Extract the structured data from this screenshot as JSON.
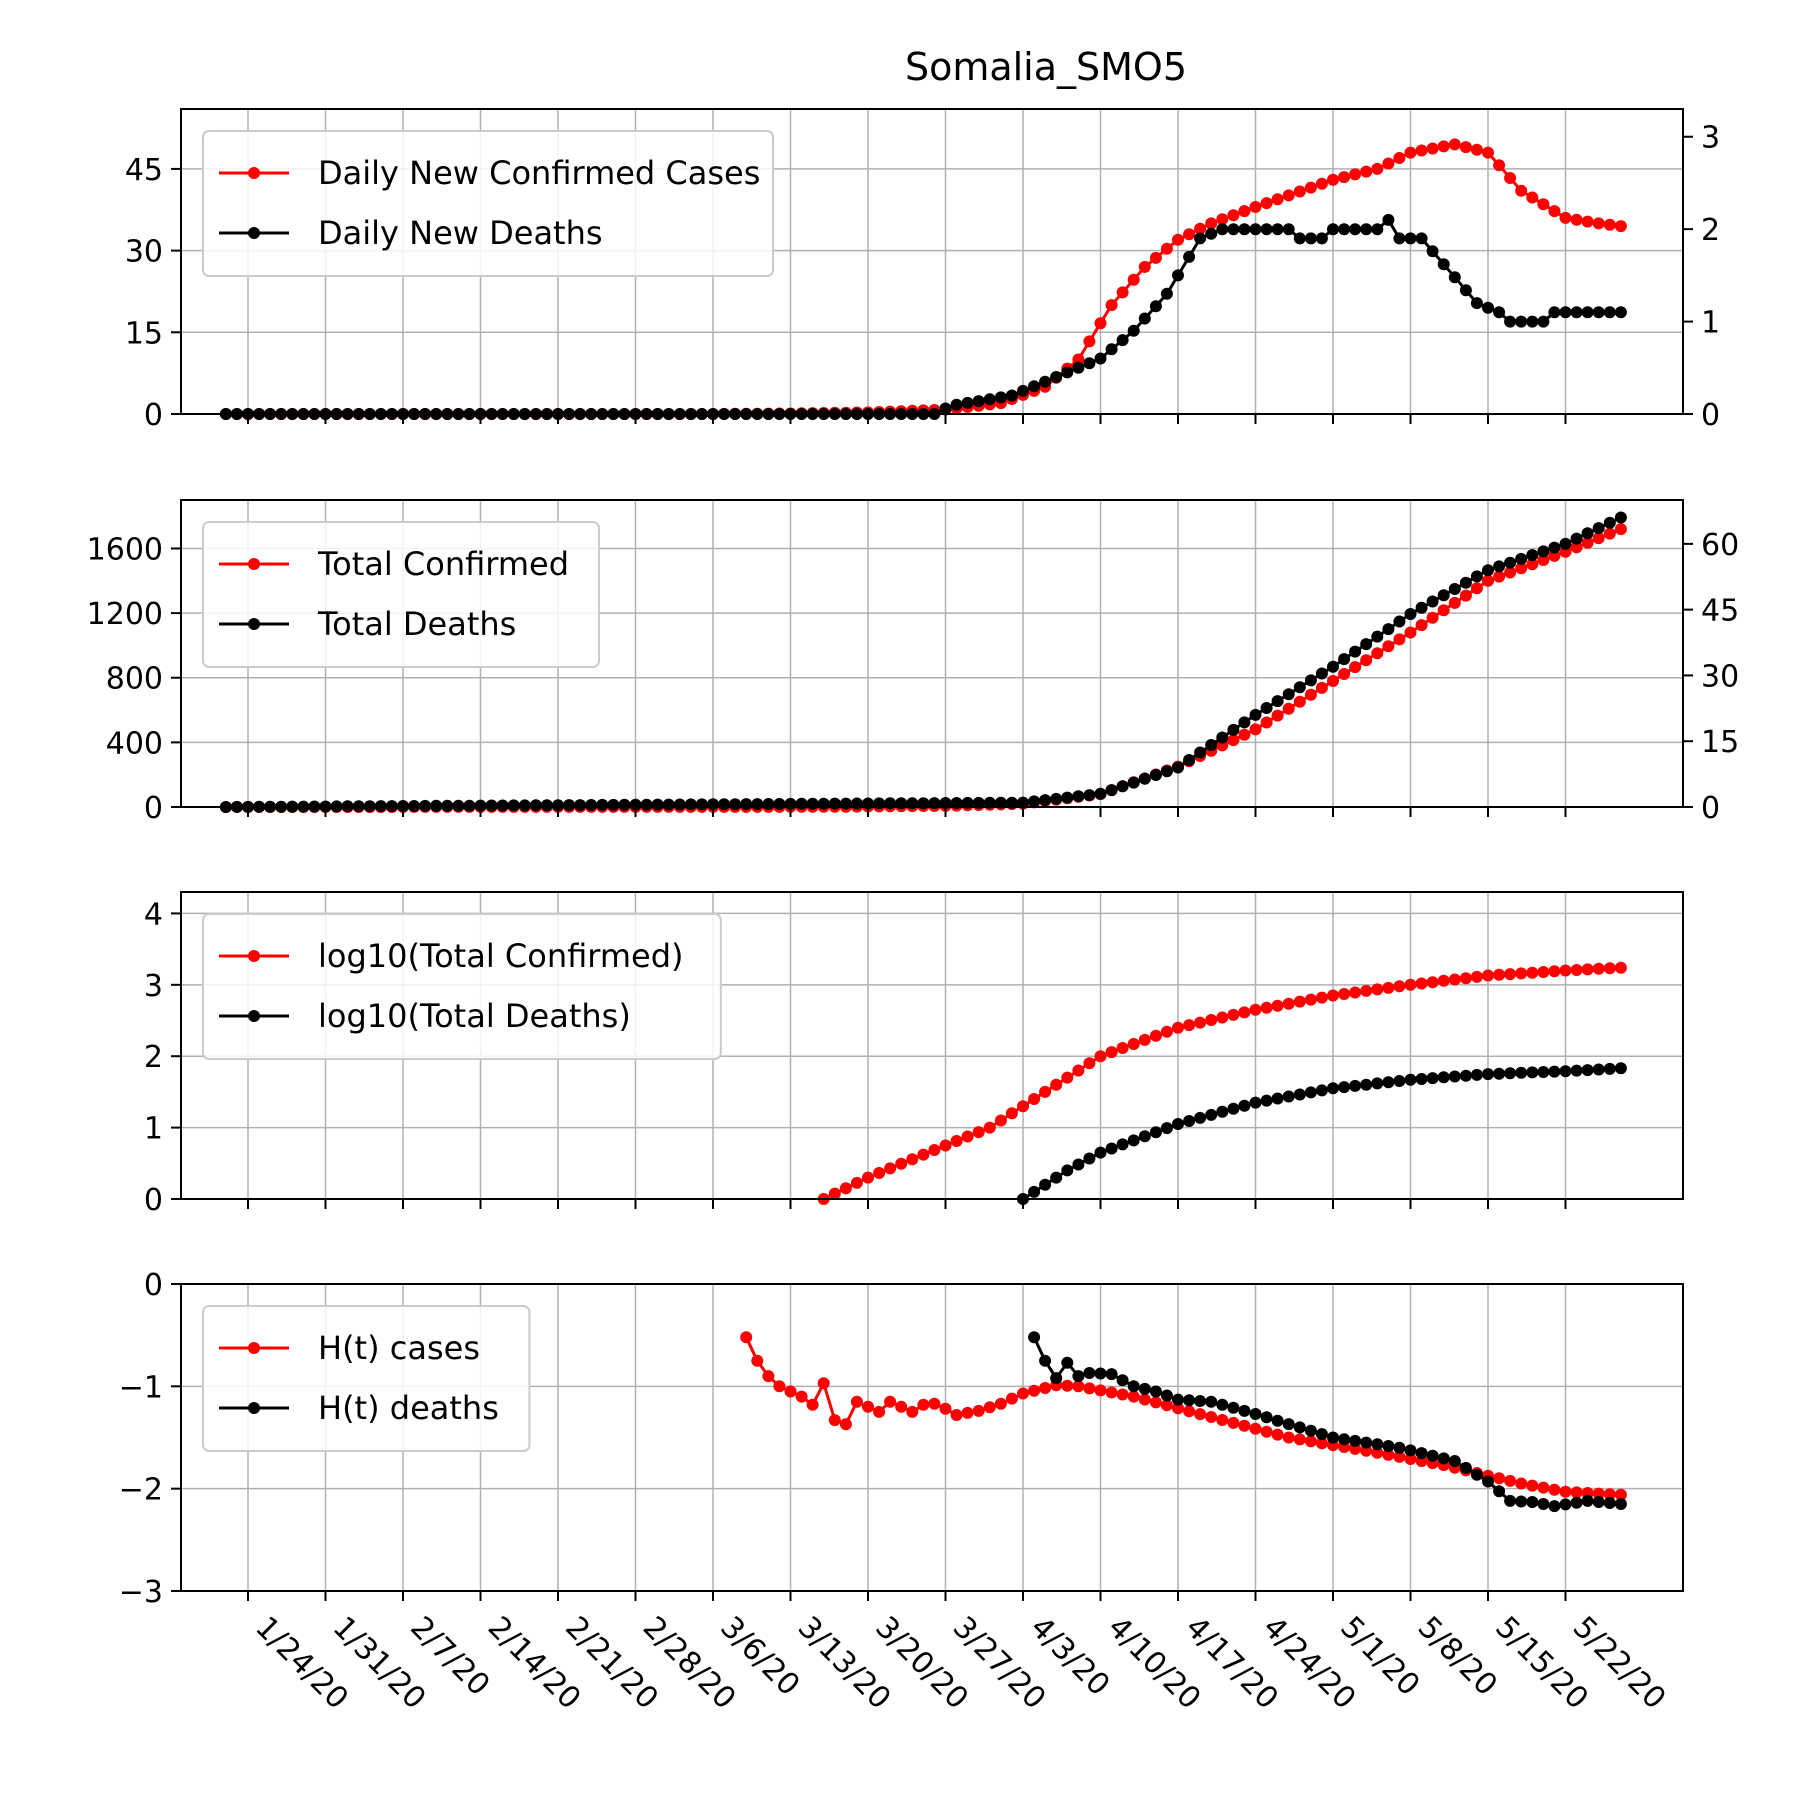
{
  "figure": {
    "title": "Somalia_SMO5"
  },
  "x_axis": {
    "start_date": "1/22/20",
    "end_date": "5/27/20",
    "tick_labels": [
      "1/24/20",
      "1/31/20",
      "2/7/20",
      "2/14/20",
      "2/21/20",
      "2/28/20",
      "3/6/20",
      "3/13/20",
      "3/20/20",
      "3/27/20",
      "4/3/20",
      "4/10/20",
      "4/17/20",
      "4/24/20",
      "5/1/20",
      "5/8/20",
      "5/15/20",
      "5/22/20"
    ],
    "label_rotation_deg": -45
  },
  "colors": {
    "cases": "#ff0000",
    "deaths": "#000000",
    "grid": "#b0b0b0"
  },
  "chart_data": [
    {
      "type": "line",
      "panel": "daily",
      "legend": {
        "position": "upper-left",
        "entries": [
          "Daily New Confirmed Cases",
          "Daily New Deaths"
        ]
      },
      "grid": true,
      "y_left": {
        "ylim": [
          0,
          56
        ],
        "ticks": [
          0,
          15,
          30,
          45
        ]
      },
      "y_right": {
        "ylim": [
          0,
          3.3
        ],
        "ticks": [
          0,
          1,
          2,
          3
        ]
      },
      "series": [
        {
          "name": "Daily New Confirmed Cases",
          "axis": "left",
          "color": "#ff0000",
          "keypoints": [
            [
              "1/22/20",
              0
            ],
            [
              "3/6/20",
              0
            ],
            [
              "3/13/20",
              0.1
            ],
            [
              "3/20/20",
              0.3
            ],
            [
              "3/27/20",
              0.8
            ],
            [
              "4/1/20",
              2
            ],
            [
              "4/5/20",
              5
            ],
            [
              "4/8/20",
              10
            ],
            [
              "4/11/20",
              20
            ],
            [
              "4/14/20",
              27
            ],
            [
              "4/17/20",
              32
            ],
            [
              "4/20/20",
              35
            ],
            [
              "4/24/20",
              38
            ],
            [
              "5/1/20",
              43
            ],
            [
              "5/5/20",
              45
            ],
            [
              "5/8/20",
              48
            ],
            [
              "5/12/20",
              49.5
            ],
            [
              "5/15/20",
              48
            ],
            [
              "5/18/20",
              41
            ],
            [
              "5/22/20",
              36
            ],
            [
              "5/25/20",
              35
            ],
            [
              "5/27/20",
              34.5
            ]
          ]
        },
        {
          "name": "Daily New Deaths",
          "axis": "right",
          "color": "#000000",
          "keypoints": [
            [
              "1/22/20",
              0
            ],
            [
              "3/26/20",
              0
            ],
            [
              "3/27/20",
              0.06
            ],
            [
              "3/28/20",
              0.1
            ],
            [
              "4/2/20",
              0.2
            ],
            [
              "4/6/20",
              0.4
            ],
            [
              "4/10/20",
              0.6
            ],
            [
              "4/13/20",
              0.9
            ],
            [
              "4/16/20",
              1.3
            ],
            [
              "4/19/20",
              1.9
            ],
            [
              "4/21/20",
              2
            ],
            [
              "4/27/20",
              2
            ],
            [
              "4/28/20",
              1.9
            ],
            [
              "4/30/20",
              1.9
            ],
            [
              "5/1/20",
              2
            ],
            [
              "5/5/20",
              2
            ],
            [
              "5/6/20",
              2.1
            ],
            [
              "5/7/20",
              1.9
            ],
            [
              "5/9/20",
              1.9
            ],
            [
              "5/14/20",
              1.2
            ],
            [
              "5/16/20",
              1.1
            ],
            [
              "5/17/20",
              1
            ],
            [
              "5/20/20",
              1
            ],
            [
              "5/21/20",
              1.1
            ],
            [
              "5/27/20",
              1.1
            ]
          ]
        }
      ]
    },
    {
      "type": "line",
      "panel": "total",
      "legend": {
        "position": "upper-left",
        "entries": [
          "Total Confirmed",
          "Total Deaths"
        ]
      },
      "grid": true,
      "y_left": {
        "ylim": [
          0,
          1900
        ],
        "ticks": [
          0,
          400,
          800,
          1200,
          1600
        ]
      },
      "y_right": {
        "ylim": [
          0,
          70
        ],
        "ticks": [
          0,
          15,
          30,
          45,
          60
        ]
      },
      "series": [
        {
          "name": "Total Confirmed",
          "axis": "left",
          "color": "#ff0000",
          "keypoints": [
            [
              "1/22/20",
              0
            ],
            [
              "3/16/20",
              1
            ],
            [
              "3/27/20",
              7
            ],
            [
              "4/3/20",
              20
            ],
            [
              "4/10/20",
              80
            ],
            [
              "4/17/20",
              250
            ],
            [
              "4/24/20",
              480
            ],
            [
              "5/1/20",
              780
            ],
            [
              "5/8/20",
              1080
            ],
            [
              "5/15/20",
              1400
            ],
            [
              "5/22/20",
              1580
            ],
            [
              "5/27/20",
              1720
            ]
          ]
        },
        {
          "name": "Total Deaths",
          "axis": "right",
          "color": "#000000",
          "keypoints": [
            [
              "1/22/20",
              0
            ],
            [
              "4/3/20",
              1
            ],
            [
              "4/10/20",
              3
            ],
            [
              "4/17/20",
              9
            ],
            [
              "4/24/20",
              21
            ],
            [
              "5/1/20",
              32
            ],
            [
              "5/8/20",
              44
            ],
            [
              "5/15/20",
              54
            ],
            [
              "5/22/20",
              60
            ],
            [
              "5/27/20",
              66
            ]
          ]
        }
      ]
    },
    {
      "type": "line",
      "panel": "log",
      "legend": {
        "position": "upper-left",
        "entries": [
          "log10(Total Confirmed)",
          "log10(Total Deaths)"
        ]
      },
      "grid": true,
      "y_left": {
        "ylim": [
          0,
          4.3
        ],
        "ticks": [
          0,
          1,
          2,
          3,
          4
        ]
      },
      "series": [
        {
          "name": "log10(Total Confirmed)",
          "axis": "left",
          "color": "#ff0000",
          "keypoints": [
            [
              "3/16/20",
              0
            ],
            [
              "3/20/20",
              0.3
            ],
            [
              "3/27/20",
              0.75
            ],
            [
              "3/31/20",
              1
            ],
            [
              "4/3/20",
              1.3
            ],
            [
              "4/7/20",
              1.7
            ],
            [
              "4/10/20",
              2
            ],
            [
              "4/17/20",
              2.4
            ],
            [
              "4/24/20",
              2.65
            ],
            [
              "5/1/20",
              2.85
            ],
            [
              "5/8/20",
              3
            ],
            [
              "5/15/20",
              3.13
            ],
            [
              "5/22/20",
              3.2
            ],
            [
              "5/27/20",
              3.24
            ]
          ]
        },
        {
          "name": "log10(Total Deaths)",
          "axis": "left",
          "color": "#000000",
          "keypoints": [
            [
              "4/3/20",
              0
            ],
            [
              "4/7/20",
              0.4
            ],
            [
              "4/10/20",
              0.65
            ],
            [
              "4/17/20",
              1.05
            ],
            [
              "4/24/20",
              1.35
            ],
            [
              "5/1/20",
              1.55
            ],
            [
              "5/8/20",
              1.67
            ],
            [
              "5/15/20",
              1.75
            ],
            [
              "5/22/20",
              1.79
            ],
            [
              "5/27/20",
              1.83
            ]
          ]
        }
      ]
    },
    {
      "type": "line",
      "panel": "hurst",
      "legend": {
        "position": "upper-left",
        "entries": [
          "H(t) cases",
          "H(t) deaths"
        ]
      },
      "grid": true,
      "y_left": {
        "ylim": [
          -3,
          0
        ],
        "ticks": [
          0,
          -1,
          -2,
          -3
        ]
      },
      "series": [
        {
          "name": "H(t) cases",
          "axis": "left",
          "color": "#ff0000",
          "keypoints": [
            [
              "3/9/20",
              -0.52
            ],
            [
              "3/10/20",
              -0.75
            ],
            [
              "3/11/20",
              -0.9
            ],
            [
              "3/12/20",
              -1
            ],
            [
              "3/14/20",
              -1.1
            ],
            [
              "3/15/20",
              -1.18
            ],
            [
              "3/16/20",
              -0.97
            ],
            [
              "3/17/20",
              -1.33
            ],
            [
              "3/18/20",
              -1.37
            ],
            [
              "3/19/20",
              -1.15
            ],
            [
              "3/20/20",
              -1.2
            ],
            [
              "3/21/20",
              -1.25
            ],
            [
              "3/22/20",
              -1.15
            ],
            [
              "3/23/20",
              -1.2
            ],
            [
              "3/24/20",
              -1.25
            ],
            [
              "3/25/20",
              -1.18
            ],
            [
              "3/26/20",
              -1.17
            ],
            [
              "3/27/20",
              -1.22
            ],
            [
              "3/28/20",
              -1.28
            ],
            [
              "3/30/20",
              -1.24
            ],
            [
              "4/1/20",
              -1.17
            ],
            [
              "4/3/20",
              -1.07
            ],
            [
              "4/6/20",
              -0.99
            ],
            [
              "4/8/20",
              -1
            ],
            [
              "4/13/20",
              -1.1
            ],
            [
              "4/20/20",
              -1.3
            ],
            [
              "4/27/20",
              -1.5
            ],
            [
              "5/4/20",
              -1.63
            ],
            [
              "5/11/20",
              -1.77
            ],
            [
              "5/18/20",
              -1.95
            ],
            [
              "5/22/20",
              -2.03
            ],
            [
              "5/27/20",
              -2.06
            ]
          ]
        },
        {
          "name": "H(t) deaths",
          "axis": "left",
          "color": "#000000",
          "keypoints": [
            [
              "4/4/20",
              -0.52
            ],
            [
              "4/5/20",
              -0.75
            ],
            [
              "4/6/20",
              -0.92
            ],
            [
              "4/7/20",
              -0.77
            ],
            [
              "4/8/20",
              -0.9
            ],
            [
              "4/9/20",
              -0.87
            ],
            [
              "4/11/20",
              -0.88
            ],
            [
              "4/13/20",
              -1
            ],
            [
              "4/15/20",
              -1.05
            ],
            [
              "4/17/20",
              -1.13
            ],
            [
              "4/20/20",
              -1.15
            ],
            [
              "4/24/20",
              -1.27
            ],
            [
              "5/1/20",
              -1.5
            ],
            [
              "5/7/20",
              -1.6
            ],
            [
              "5/12/20",
              -1.73
            ],
            [
              "5/15/20",
              -1.93
            ],
            [
              "5/17/20",
              -2.12
            ],
            [
              "5/19/20",
              -2.13
            ],
            [
              "5/21/20",
              -2.17
            ],
            [
              "5/24/20",
              -2.12
            ],
            [
              "5/27/20",
              -2.15
            ]
          ]
        }
      ]
    }
  ]
}
